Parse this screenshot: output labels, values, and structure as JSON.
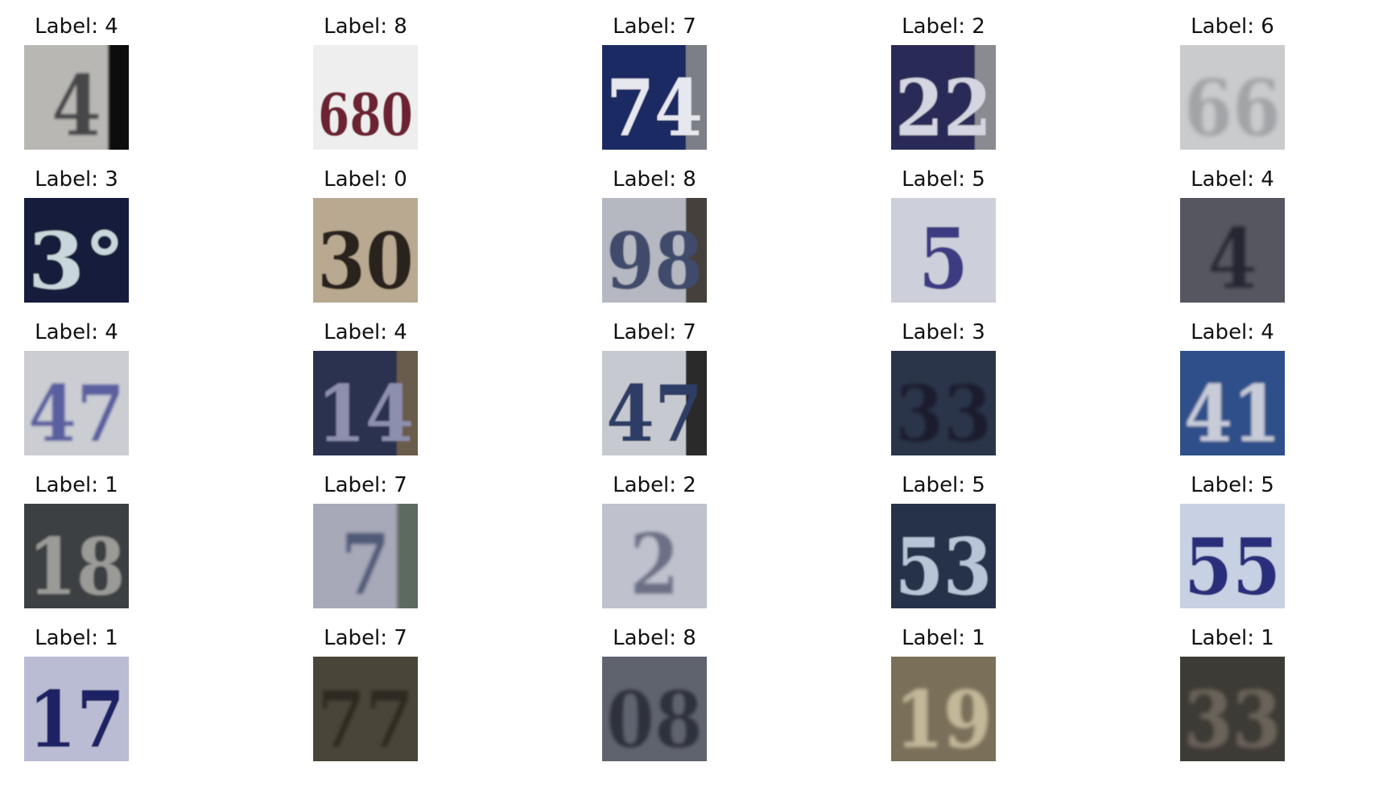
{
  "samples": [
    {
      "label_text": "Label: 4",
      "digits": "4",
      "bg": "#b9b7b3",
      "fg": "#47464a",
      "edge": "#111111",
      "blur": 1.6
    },
    {
      "label_text": "Label: 8",
      "digits": "680",
      "bg": "#eeeeef",
      "fg": "#6d2430",
      "edge": "",
      "blur": 0.5
    },
    {
      "label_text": "Label: 7",
      "digits": "74",
      "bg": "#1f2a63",
      "fg": "#e7e8ef",
      "edge": "#7c7f86",
      "blur": 0.6
    },
    {
      "label_text": "Label: 2",
      "digits": "22",
      "bg": "#2a2c58",
      "fg": "#d5d5e2",
      "edge": "#8a8b90",
      "blur": 0.8
    },
    {
      "label_text": "Label: 6",
      "digits": "66",
      "bg": "#c9cbcc",
      "fg": "#a2a4a7",
      "edge": "",
      "blur": 2.6
    },
    {
      "label_text": "Label: 3",
      "digits": "3°",
      "bg": "#181a3a",
      "fg": "#c9d7dc",
      "edge": "",
      "blur": 0.8
    },
    {
      "label_text": "Label: 0",
      "digits": "30",
      "bg": "#b8a990",
      "fg": "#2a241b",
      "edge": "",
      "blur": 0.8
    },
    {
      "label_text": "Label: 8",
      "digits": "98",
      "bg": "#b5b7c1",
      "fg": "#3f4b6c",
      "edge": "#45403b",
      "blur": 0.9
    },
    {
      "label_text": "Label: 5",
      "digits": "5",
      "bg": "#cdd0da",
      "fg": "#3c3b82",
      "edge": "",
      "blur": 0.8
    },
    {
      "label_text": "Label: 4",
      "digits": "4",
      "bg": "#565660",
      "fg": "#262630",
      "edge": "",
      "blur": 2.4
    },
    {
      "label_text": "Label: 4",
      "digits": "47",
      "bg": "#cbcdd3",
      "fg": "#5a5fa0",
      "edge": "",
      "blur": 1.6
    },
    {
      "label_text": "Label: 4",
      "digits": "14",
      "bg": "#2c3050",
      "fg": "#8d8fae",
      "edge": "#6b5b4b",
      "blur": 1.0
    },
    {
      "label_text": "Label: 7",
      "digits": "47",
      "bg": "#c6c9cf",
      "fg": "#2f3d66",
      "edge": "#2b2b2b",
      "blur": 0.6
    },
    {
      "label_text": "Label: 3",
      "digits": "33",
      "bg": "#2c3548",
      "fg": "#1a1f2d",
      "edge": "",
      "blur": 2.0
    },
    {
      "label_text": "Label: 4",
      "digits": "41",
      "bg": "#2f4f8a",
      "fg": "#c7ccd8",
      "edge": "",
      "blur": 1.6
    },
    {
      "label_text": "Label: 1",
      "digits": "18",
      "bg": "#3c3f42",
      "fg": "#9a9a96",
      "edge": "",
      "blur": 1.4
    },
    {
      "label_text": "Label: 7",
      "digits": "7",
      "bg": "#a7a8b8",
      "fg": "#505a78",
      "edge": "#5d6b5f",
      "blur": 2.0
    },
    {
      "label_text": "Label: 2",
      "digits": "2",
      "bg": "#bfc2cd",
      "fg": "#6c6f86",
      "edge": "",
      "blur": 2.0
    },
    {
      "label_text": "Label: 5",
      "digits": "53",
      "bg": "#27304a",
      "fg": "#b8c4d8",
      "edge": "",
      "blur": 0.8
    },
    {
      "label_text": "Label: 5",
      "digits": "55",
      "bg": "#c8d0e4",
      "fg": "#2a2f7a",
      "edge": "",
      "blur": 0.5
    },
    {
      "label_text": "Label: 1",
      "digits": "17",
      "bg": "#b9bcd2",
      "fg": "#1e2064",
      "edge": "",
      "blur": 0.6
    },
    {
      "label_text": "Label: 7",
      "digits": "77",
      "bg": "#4a4537",
      "fg": "#2e2a20",
      "edge": "",
      "blur": 2.2
    },
    {
      "label_text": "Label: 8",
      "digits": "08",
      "bg": "#5f646e",
      "fg": "#2d323d",
      "edge": "",
      "blur": 2.0
    },
    {
      "label_text": "Label: 1",
      "digits": "19",
      "bg": "#7a705a",
      "fg": "#c3b898",
      "edge": "",
      "blur": 2.4
    },
    {
      "label_text": "Label: 1",
      "digits": "33",
      "bg": "#3e3b35",
      "fg": "#6a645a",
      "edge": "",
      "blur": 2.6
    }
  ]
}
